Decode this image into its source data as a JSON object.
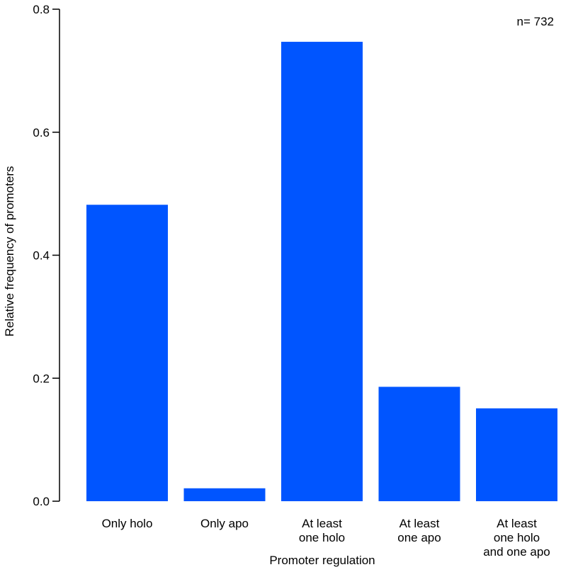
{
  "chart_data": {
    "type": "bar",
    "categories": [
      [
        "Only holo"
      ],
      [
        "Only apo"
      ],
      [
        "At least",
        "one holo"
      ],
      [
        "At least",
        "one apo"
      ],
      [
        "At least",
        "one holo",
        "and one apo"
      ]
    ],
    "values": [
      0.482,
      0.021,
      0.747,
      0.186,
      0.151
    ],
    "xlabel": "Promoter regulation",
    "ylabel": "Relative frequency of promoters",
    "ylim": [
      0,
      0.8
    ],
    "yticks": [
      "0.0",
      "0.2",
      "0.4",
      "0.6",
      "0.8"
    ],
    "annotation": "n= 732",
    "grid": false,
    "legend": "none",
    "bar_color": "#0055ff"
  }
}
